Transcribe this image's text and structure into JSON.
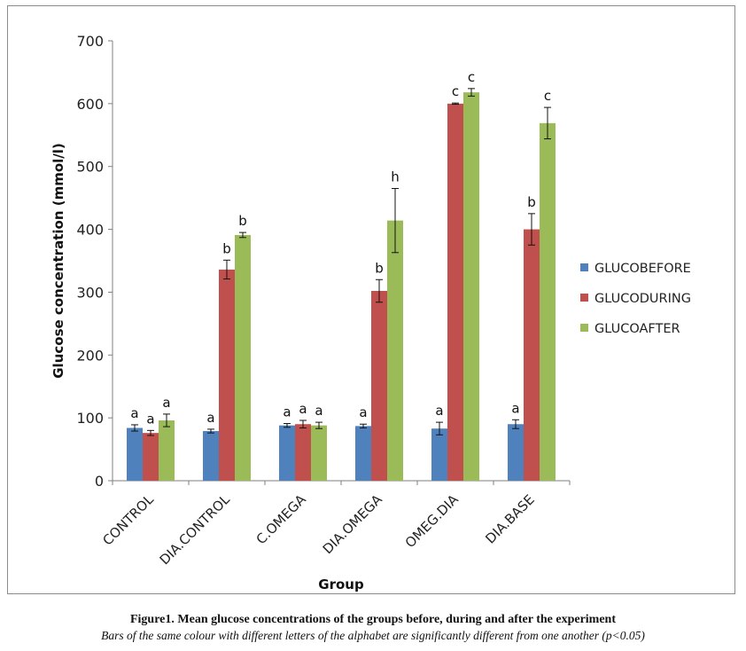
{
  "chart_data": {
    "type": "bar",
    "title": "",
    "xlabel": "Group",
    "ylabel": "Glucose concentration (mmol/l)",
    "ylim": [
      0,
      700
    ],
    "yticks": [
      "0",
      "100",
      "200",
      "300",
      "400",
      "500",
      "600",
      "700"
    ],
    "categories": [
      "CONTROL",
      "DIA.CONTROL",
      "C.OMEGA",
      "DIA.OMEGA",
      "OMEG.DIA",
      "DIA.BASE"
    ],
    "legend_position": "right",
    "series": [
      {
        "name": "GLUCOBEFORE",
        "color": "#4f81bd",
        "values": [
          84,
          79,
          88,
          87,
          83,
          90
        ],
        "errors": [
          5,
          3,
          3,
          3,
          10,
          7
        ],
        "letters": [
          "a",
          "a",
          "a",
          "a",
          "a",
          "a"
        ]
      },
      {
        "name": "GLUCODURING",
        "color": "#c0504d",
        "values": [
          76,
          336,
          90,
          302,
          600,
          400
        ],
        "errors": [
          4,
          15,
          6,
          18,
          1,
          25
        ],
        "letters": [
          "a",
          "b",
          "a",
          "b",
          "c",
          "b"
        ]
      },
      {
        "name": "GLUCOAFTER",
        "color": "#9bbb59",
        "values": [
          96,
          391,
          88,
          414,
          618,
          569
        ],
        "errors": [
          10,
          4,
          5,
          51,
          6,
          25
        ],
        "letters": [
          "a",
          "b",
          "a",
          "h",
          "c",
          "c"
        ]
      }
    ]
  },
  "caption": {
    "title": "Figure1. Mean glucose concentrations of the groups before, during and after the experiment",
    "note": "Bars of the same colour with different letters of the alphabet are significantly different from one another (p<0.05)"
  }
}
